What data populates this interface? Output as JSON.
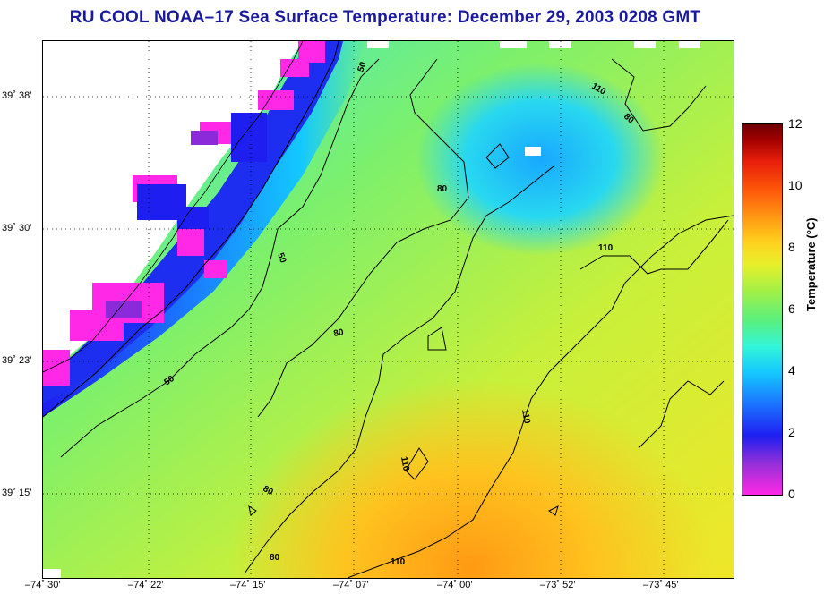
{
  "title": "RU COOL  NOAA–17  Sea Surface Temperature:  December 29, 2003 0208 GMT",
  "map": {
    "y_ticks": [
      "39˚ 38’",
      "39˚ 30’",
      "39˚ 23’",
      "39˚ 15’"
    ],
    "x_ticks": [
      "–74˚ 30’",
      "–74˚ 22’",
      "–74˚ 15’",
      "–74˚ 07’",
      "–74˚ 00’",
      "–73˚ 52’",
      "–73˚ 45’"
    ],
    "contour_labels": [
      "50",
      "50",
      "50",
      "80",
      "80",
      "80",
      "80",
      "80",
      "110",
      "110",
      "110",
      "110",
      "110"
    ],
    "colors": {
      "land": "#ffffff",
      "coast": "#000000",
      "grid": "#000000",
      "cold": "#ff28e6",
      "warm": "#ffa014"
    }
  },
  "colorbar": {
    "label": "Temperature (°C)",
    "ticks": [
      "12",
      "10",
      "8",
      "6",
      "4",
      "2",
      "0"
    ]
  }
}
